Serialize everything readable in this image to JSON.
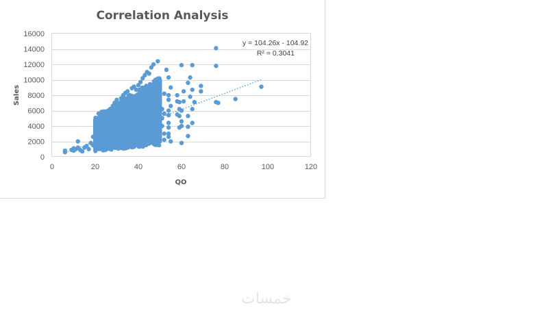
{
  "chart_data": {
    "type": "scatter",
    "title": "Correlation Analysis",
    "xlabel": "QO",
    "ylabel": "Sales",
    "xlim": [
      0,
      120
    ],
    "ylim": [
      0,
      16000
    ],
    "x_ticks": [
      "0",
      "20",
      "40",
      "60",
      "80",
      "100",
      "120"
    ],
    "y_ticks": [
      "0",
      "2000",
      "4000",
      "6000",
      "8000",
      "10000",
      "12000",
      "14000",
      "16000"
    ],
    "grid": "horizontal",
    "legend": "none",
    "marker_color": "#5b9bd5",
    "trendline": {
      "style": "dotted linear",
      "slope": 104.26,
      "intercept": -104.92,
      "x_range": [
        6,
        97
      ],
      "equation": "y = 104.26x - 104.92",
      "r_squared": "R² = 0.3041"
    },
    "dense_cluster": {
      "description_x": [
        20,
        50
      ],
      "y_lower_at_x20": 1200,
      "y_lower_at_x50": 2000,
      "y_upper_at_x20": 4800,
      "y_upper_at_x50": 9800
    },
    "points": [
      [
        6,
        600
      ],
      [
        6,
        800
      ],
      [
        9,
        900
      ],
      [
        10,
        1100
      ],
      [
        10,
        800
      ],
      [
        11,
        1000
      ],
      [
        12,
        1200
      ],
      [
        12,
        2000
      ],
      [
        13,
        900
      ],
      [
        14,
        700
      ],
      [
        15,
        1200
      ],
      [
        16,
        1400
      ],
      [
        17,
        1000
      ],
      [
        18,
        1800
      ],
      [
        19,
        1500
      ],
      [
        19,
        2600
      ],
      [
        20,
        3800
      ],
      [
        20,
        4600
      ],
      [
        21,
        4900
      ],
      [
        22,
        5200
      ],
      [
        24,
        5400
      ],
      [
        25,
        5600
      ],
      [
        26,
        6000
      ],
      [
        27,
        5800
      ],
      [
        28,
        6300
      ],
      [
        29,
        7000
      ],
      [
        30,
        7400
      ],
      [
        31,
        6800
      ],
      [
        32,
        7600
      ],
      [
        33,
        8000
      ],
      [
        34,
        8300
      ],
      [
        35,
        8500
      ],
      [
        36,
        8000
      ],
      [
        37,
        8900
      ],
      [
        38,
        9100
      ],
      [
        39,
        8700
      ],
      [
        40,
        9300
      ],
      [
        41,
        9700
      ],
      [
        42,
        10200
      ],
      [
        43,
        10600
      ],
      [
        44,
        11000
      ],
      [
        45,
        10800
      ],
      [
        46,
        11600
      ],
      [
        47,
        12000
      ],
      [
        48,
        9500
      ],
      [
        49,
        9800
      ],
      [
        49,
        12400
      ],
      [
        50,
        9900
      ],
      [
        50,
        8000
      ],
      [
        50,
        7000
      ],
      [
        50,
        6000
      ],
      [
        50,
        5200
      ],
      [
        50,
        4300
      ],
      [
        50,
        3500
      ],
      [
        50,
        2800
      ],
      [
        51,
        6200
      ],
      [
        51,
        5000
      ],
      [
        51,
        4000
      ],
      [
        52,
        8200
      ],
      [
        52,
        5600
      ],
      [
        52,
        3000
      ],
      [
        52,
        2200
      ],
      [
        53,
        11300
      ],
      [
        54,
        10300
      ],
      [
        54,
        8000
      ],
      [
        54,
        7400
      ],
      [
        54,
        6000
      ],
      [
        54,
        5400
      ],
      [
        54,
        4400
      ],
      [
        54,
        3800
      ],
      [
        54,
        3000
      ],
      [
        54,
        2600
      ],
      [
        55,
        9000
      ],
      [
        55,
        6600
      ],
      [
        55,
        2000
      ],
      [
        58,
        8000
      ],
      [
        58,
        7200
      ],
      [
        58,
        5500
      ],
      [
        59,
        7100
      ],
      [
        59,
        6200
      ],
      [
        59,
        5300
      ],
      [
        59,
        3800
      ],
      [
        60,
        6000
      ],
      [
        60,
        4600
      ],
      [
        60,
        4000
      ],
      [
        60,
        1800
      ],
      [
        60,
        11900
      ],
      [
        61,
        8500
      ],
      [
        61,
        7200
      ],
      [
        63,
        9600
      ],
      [
        63,
        5300
      ],
      [
        63,
        3900
      ],
      [
        63,
        2700
      ],
      [
        64,
        10300
      ],
      [
        64,
        7800
      ],
      [
        65,
        11900
      ],
      [
        65,
        8700
      ],
      [
        65,
        6200
      ],
      [
        65,
        4400
      ],
      [
        66,
        7100
      ],
      [
        69,
        9200
      ],
      [
        69,
        8500
      ],
      [
        76,
        14100
      ],
      [
        76,
        11800
      ],
      [
        76,
        7100
      ],
      [
        77,
        7000
      ],
      [
        85,
        7500
      ],
      [
        97,
        9100
      ]
    ]
  }
}
